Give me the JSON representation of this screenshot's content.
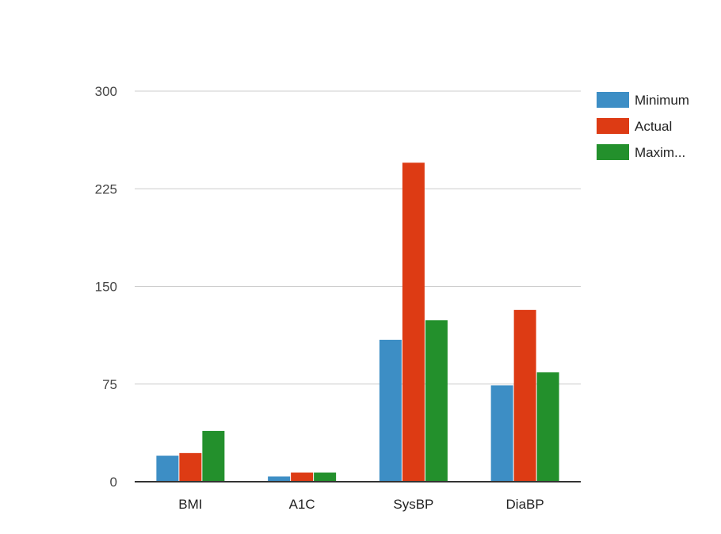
{
  "chart_data": {
    "type": "bar",
    "title": "",
    "xlabel": "",
    "ylabel": "",
    "categories": [
      "BMI",
      "A1C",
      "SysBP",
      "DiaBP"
    ],
    "series": [
      {
        "name": "Minimum",
        "color": "#3d8ec5",
        "values": [
          20,
          4,
          109,
          74
        ]
      },
      {
        "name": "Actual",
        "color": "#dd3b14",
        "values": [
          22,
          7,
          245,
          132
        ]
      },
      {
        "name": "Maxim...",
        "color": "#23902c",
        "values": [
          39,
          7,
          124,
          84
        ]
      }
    ],
    "y_ticks": [
      "0",
      "75",
      "150",
      "225",
      "300"
    ],
    "ylim": [
      0,
      300
    ],
    "grid": true,
    "legend": "right"
  }
}
